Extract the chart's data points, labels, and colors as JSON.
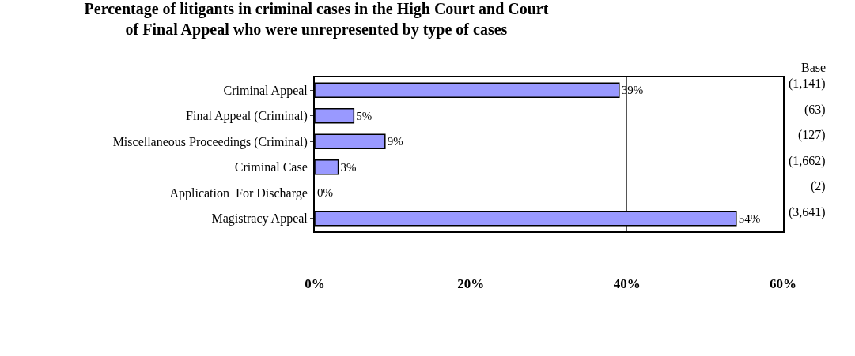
{
  "chart_data": {
    "type": "bar",
    "orientation": "horizontal",
    "title": "Percentage of litigants in criminal cases in the High Court and Court\nof Final Appeal who were unrepresented by type of cases",
    "categories": [
      "Criminal Appeal",
      "Final Appeal (Criminal)",
      "Miscellaneous Proceedings (Criminal)",
      "Criminal Case",
      "Application  For Discharge",
      "Magistracy Appeal"
    ],
    "values": [
      39,
      5,
      9,
      3,
      0,
      54
    ],
    "value_labels": [
      "39%",
      "5%",
      "9%",
      "3%",
      "0%",
      "54%"
    ],
    "color": "#9999ff",
    "xlim": [
      0,
      60
    ],
    "xticks": [
      {
        "value": 0,
        "label": "0%"
      },
      {
        "value": 20,
        "label": "20%"
      },
      {
        "value": 40,
        "label": "40%"
      },
      {
        "value": 60,
        "label": "60%"
      }
    ],
    "grid": "x",
    "legend": false,
    "annotations": [
      "Base",
      "(1,141)",
      "(63)",
      "(127)",
      "(1,662)",
      "(2)",
      "(3,641)"
    ]
  }
}
